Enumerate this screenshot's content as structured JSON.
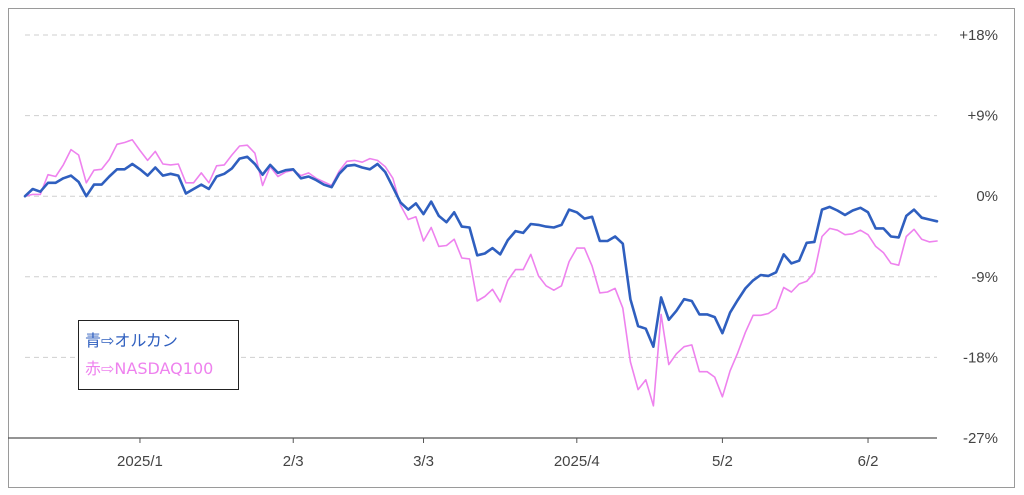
{
  "chart_data": {
    "type": "line",
    "ylim": [
      -27,
      18
    ],
    "y_ticks": [
      "+18%",
      "+9%",
      "0%",
      "-9%",
      "-18%",
      "-27%"
    ],
    "y_tick_values": [
      18,
      9,
      0,
      -9,
      -18,
      -27
    ],
    "grid": true,
    "x_tick_labels": [
      "2025/1",
      "2/3",
      "3/3",
      "2025/4",
      "5/2",
      "6/2"
    ],
    "x_tick_index": [
      15,
      35,
      52,
      72,
      91,
      110
    ],
    "legend_position": "bottom-left",
    "legend": [
      "青⇨オルカン",
      "赤⇨NASDAQ100"
    ],
    "series": [
      {
        "name": "青⇨オルカン",
        "color": "#2f5fbf",
        "values": [
          0,
          0.8,
          0.5,
          1.5,
          1.5,
          2,
          2.3,
          1.6,
          0,
          1.3,
          1.3,
          2.2,
          3,
          3,
          3.6,
          3,
          2.3,
          3.2,
          2.3,
          2.5,
          2.3,
          0.3,
          0.8,
          1.3,
          0.8,
          2.2,
          2.5,
          3.1,
          4.2,
          4.4,
          3.6,
          2.4,
          3.5,
          2.6,
          2.9,
          3,
          2,
          2.2,
          1.8,
          1.3,
          1,
          2.5,
          3.4,
          3.5,
          3.2,
          3,
          3.6,
          2.7,
          1,
          -0.7,
          -1.5,
          -0.8,
          -2,
          -0.6,
          -2.2,
          -2.9,
          -1.8,
          -3.4,
          -3.5,
          -6.6,
          -6.4,
          -5.8,
          -6.5,
          -4.9,
          -3.9,
          -4.1,
          -3.1,
          -3.2,
          -3.4,
          -3.5,
          -3.2,
          -1.5,
          -1.8,
          -2.5,
          -2.3,
          -5,
          -5,
          -4.5,
          -5.3,
          -11.5,
          -14.5,
          -14.8,
          -16.8,
          -11.3,
          -13.8,
          -12.8,
          -11.5,
          -11.7,
          -13.2,
          -13.2,
          -13.5,
          -15.3,
          -13,
          -11.6,
          -10.3,
          -9.4,
          -8.8,
          -8.9,
          -8.5,
          -6.5,
          -7.5,
          -7.2,
          -5.2,
          -5.1,
          -1.5,
          -1.2,
          -1.6,
          -2.1,
          -1.6,
          -1.3,
          -1.8,
          -3.6,
          -3.6,
          -4.5,
          -4.6,
          -2.2,
          -1.5,
          -2.4,
          -2.6,
          -2.8
        ]
      },
      {
        "name": "赤⇨NASDAQ100",
        "color": "#ee82ee",
        "values": [
          0,
          0.2,
          0.2,
          2.4,
          2.2,
          3.5,
          5.2,
          4.6,
          1.5,
          2.9,
          3,
          4.1,
          5.8,
          6,
          6.3,
          5.1,
          4,
          5,
          3.6,
          3.5,
          3.6,
          1.5,
          1.5,
          2.6,
          1.5,
          3.4,
          3.5,
          4.6,
          5.6,
          5.7,
          4.8,
          1.2,
          3.3,
          2.2,
          2.7,
          2.9,
          2.3,
          2.6,
          2,
          1.6,
          1.2,
          2.8,
          3.9,
          4,
          3.8,
          4.2,
          4,
          3.3,
          2,
          -1,
          -2.6,
          -2.3,
          -5,
          -3.5,
          -5.6,
          -5.5,
          -4.8,
          -6.9,
          -7,
          -11.7,
          -11.2,
          -10.4,
          -11.8,
          -9.4,
          -8.2,
          -8.2,
          -6.5,
          -8.9,
          -10,
          -10.5,
          -10,
          -7.3,
          -5.8,
          -5.8,
          -7.8,
          -10.8,
          -10.7,
          -10.3,
          -12.5,
          -18.5,
          -21.6,
          -20.5,
          -23.4,
          -13.2,
          -18.8,
          -17.6,
          -16.8,
          -16.6,
          -19.6,
          -19.6,
          -20.2,
          -22.4,
          -19.5,
          -17.5,
          -15.2,
          -13.3,
          -13.3,
          -13.1,
          -12.5,
          -10.2,
          -10.7,
          -9.8,
          -9.5,
          -8.5,
          -4.5,
          -3.6,
          -3.8,
          -4.3,
          -4.2,
          -3.8,
          -4.3,
          -5.6,
          -6.3,
          -7.5,
          -7.7,
          -4.5,
          -3.7,
          -4.8,
          -5.1,
          -5
        ]
      }
    ]
  }
}
